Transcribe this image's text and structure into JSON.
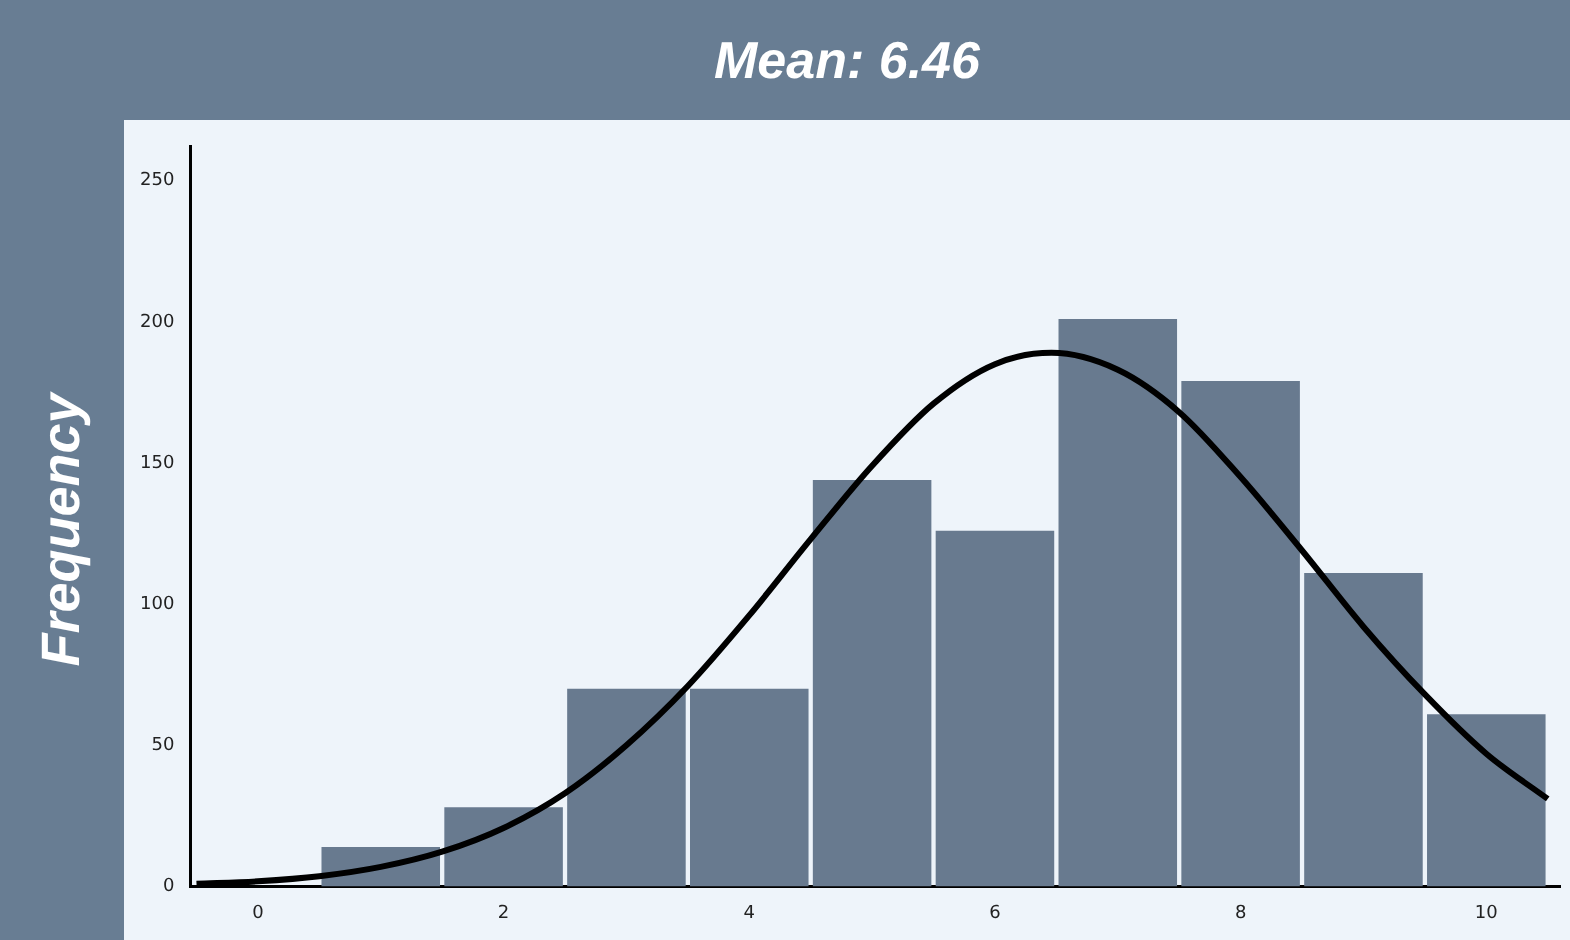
{
  "chart_data": {
    "type": "histogram",
    "title": "Mean: 6.46",
    "ylabel": "Frequency",
    "bins": [
      0.5,
      1.5,
      2.5,
      3.5,
      4.5,
      5.5,
      6.5,
      7.5,
      8.5,
      9.5,
      10.5
    ],
    "values": [
      14,
      28,
      70,
      70,
      144,
      126,
      201,
      179,
      111,
      61
    ],
    "color": "#687a8f",
    "series": [
      {
        "type": "line",
        "color": "#000000",
        "marker": "none",
        "line_style": "solid",
        "x": [
          -0.5,
          0,
          0.5,
          1,
          1.5,
          2,
          2.5,
          3,
          3.5,
          4,
          4.5,
          5,
          5.5,
          6,
          6.46,
          7,
          7.5,
          8,
          8.5,
          9,
          9.5,
          10,
          10.5
        ],
        "values": [
          0.9,
          1.8,
          3.6,
          6.9,
          12.3,
          20.7,
          33,
          50,
          71,
          96,
          123,
          149,
          171,
          185,
          189,
          183,
          168,
          145,
          119,
          92,
          68,
          47,
          31
        ]
      }
    ],
    "xlim": [
      -0.55,
      10.6
    ],
    "ylim": [
      0,
      262
    ],
    "xticks": [
      0,
      2,
      4,
      6,
      8,
      10
    ],
    "yticks": [
      0,
      50,
      100,
      150,
      200,
      250
    ],
    "grid": false,
    "legend": false
  }
}
